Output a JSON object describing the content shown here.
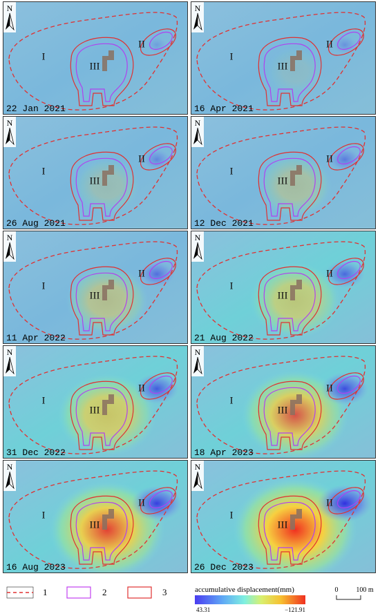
{
  "panels": [
    {
      "date": "22 Jan 2021"
    },
    {
      "date": "16 Apr 2021"
    },
    {
      "date": "26 Aug 2021"
    },
    {
      "date": "12 Dec 2021"
    },
    {
      "date": "11 Apr 2022"
    },
    {
      "date": "21 Aug 2022"
    },
    {
      "date": "31 Dec 2022"
    },
    {
      "date": "18 Apr 2023"
    },
    {
      "date": "16 Aug 2023"
    },
    {
      "date": "26 Dec 2023"
    }
  ],
  "north": "N",
  "regions": [
    "I",
    "II",
    "III"
  ],
  "legend": {
    "items": [
      {
        "label": "1"
      },
      {
        "label": "2"
      },
      {
        "label": "3"
      }
    ],
    "colorbar": {
      "title": "accumulative displacement(mm)",
      "min_label": "43.31",
      "max_label": "−121.91"
    },
    "scale": {
      "start": "0",
      "end": "100 m"
    }
  }
}
